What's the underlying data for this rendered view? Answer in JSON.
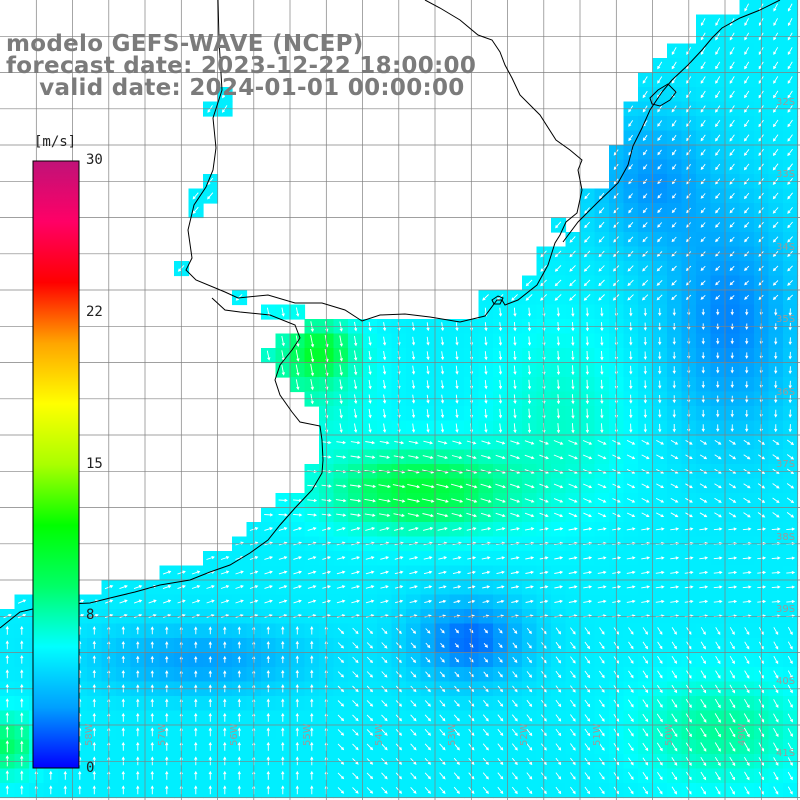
{
  "title": {
    "line1": "modelo GEFS-WAVE (NCEP)",
    "line2": "forecast date: 2023-12-22 18:00:00",
    "line3": "    valid date: 2024-01-01 00:00:00"
  },
  "colorbar": {
    "unit": "[m/s]",
    "ticks": [
      {
        "value": 30,
        "label": "30"
      },
      {
        "value": 22,
        "label": "22"
      },
      {
        "value": 15,
        "label": "15"
      },
      {
        "value": 8,
        "label": "8"
      },
      {
        "value": 0,
        "label": "0"
      }
    ],
    "min": 0,
    "max": 30,
    "colors": [
      "#0000ff",
      "#00a0ff",
      "#00ffff",
      "#00ff66",
      "#00ff00",
      "#aaff00",
      "#ffff00",
      "#ffa500",
      "#ff0000",
      "#ff0066",
      "#c01278"
    ]
  },
  "map": {
    "lat_labels": [
      "32S",
      "33S",
      "34S",
      "35S",
      "36S",
      "37S",
      "38S",
      "39S",
      "40S",
      "41S"
    ],
    "lon_labels": [
      "58W",
      "57W",
      "56W",
      "55W",
      "54W",
      "53W",
      "52W",
      "51W",
      "50W",
      "49W"
    ],
    "land_color": "#ffffff",
    "grid_color": "#808080",
    "coast_color": "#000000",
    "arrow_color": "#ffffff"
  }
}
